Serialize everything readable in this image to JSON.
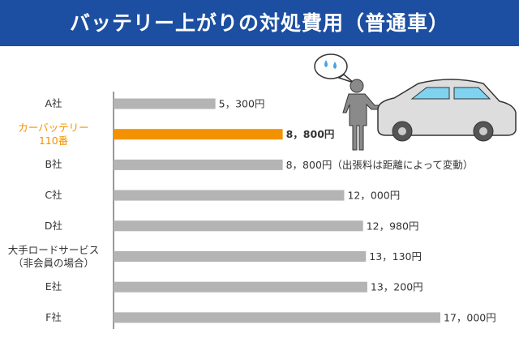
{
  "chart_data": {
    "type": "bar",
    "orientation": "horizontal",
    "title": "バッテリー上がりの対処費用（普通車）",
    "categories": [
      "A社",
      "カーバッテリー\n110番",
      "B社",
      "C社",
      "D社",
      "大手ロードサービス\n（非会員の場合）",
      "E社",
      "F社"
    ],
    "values": [
      5300,
      8800,
      8800,
      12000,
      12980,
      13130,
      13200,
      17000
    ],
    "value_labels": [
      "5，300円",
      "8，800円",
      "8，800円（出張料は距離によって変動）",
      "12，000円",
      "12，980円",
      "13，130円",
      "13，200円",
      "17，000円"
    ],
    "colors": [
      "#b4b4b4",
      "#f39200",
      "#b4b4b4",
      "#b4b4b4",
      "#b4b4b4",
      "#b4b4b4",
      "#b4b4b4",
      "#b4b4b4"
    ],
    "xlim": [
      0,
      17000
    ]
  }
}
